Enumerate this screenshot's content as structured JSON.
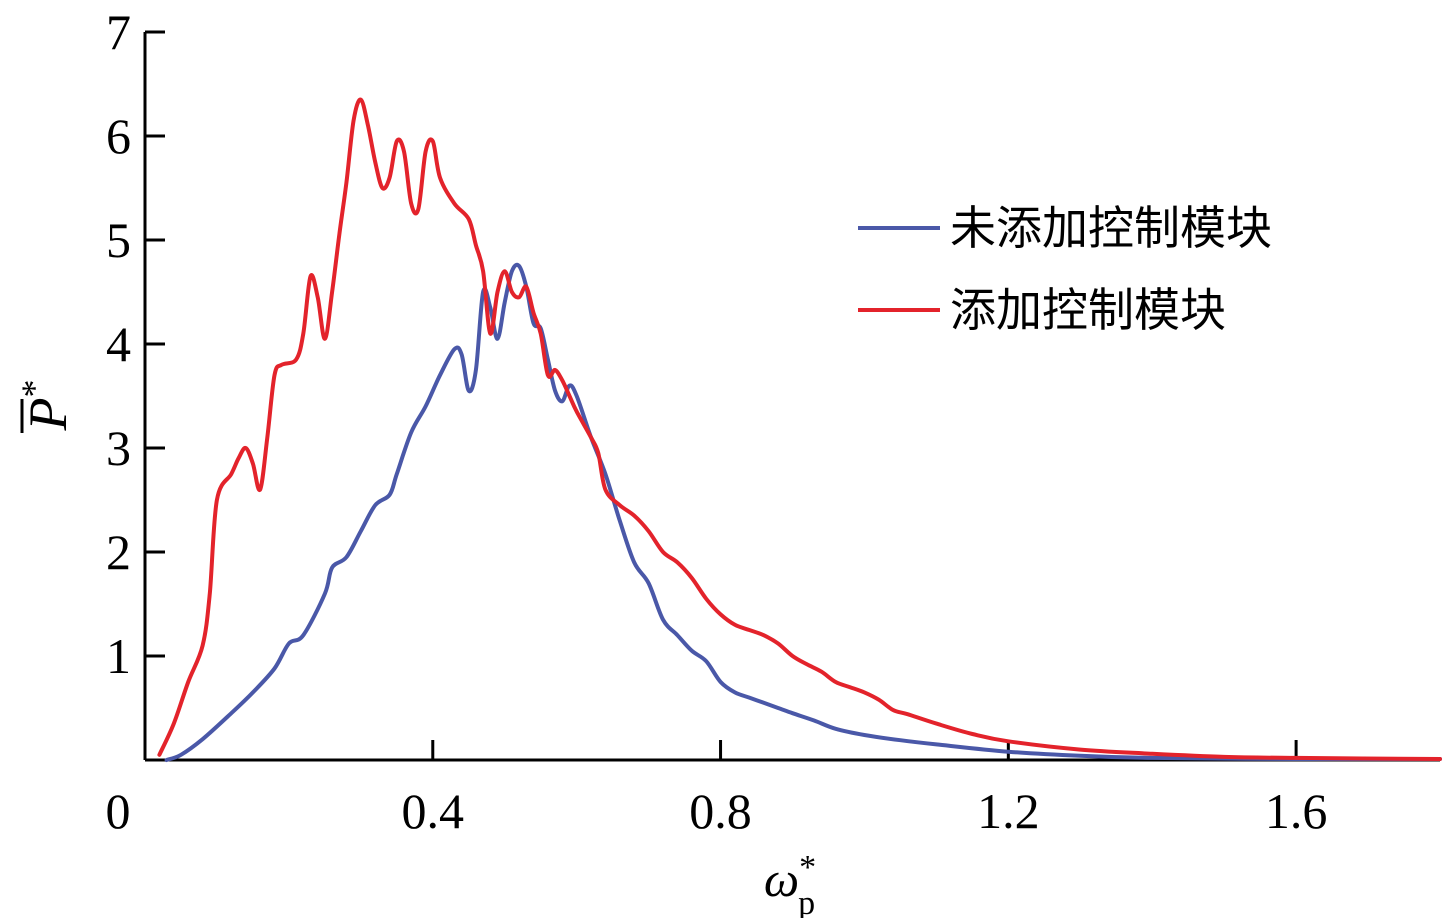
{
  "chart_data": {
    "type": "line",
    "xlabel": {
      "main": "ω",
      "sup": "*",
      "sub": "p"
    },
    "ylabel": {
      "main": "P",
      "sup": "*",
      "overbar": true
    },
    "xlim": [
      0,
      1.8
    ],
    "ylim": [
      0,
      7
    ],
    "x_ticks": [
      {
        "value": 0,
        "label": "0"
      },
      {
        "value": 0.4,
        "label": "0.4"
      },
      {
        "value": 0.8,
        "label": "0.8"
      },
      {
        "value": 1.2,
        "label": "1.2"
      },
      {
        "value": 1.6,
        "label": "1.6"
      }
    ],
    "y_ticks": [
      {
        "value": 1,
        "label": "1"
      },
      {
        "value": 2,
        "label": "2"
      },
      {
        "value": 3,
        "label": "3"
      },
      {
        "value": 4,
        "label": "4"
      },
      {
        "value": 5,
        "label": "5"
      },
      {
        "value": 6,
        "label": "6"
      },
      {
        "value": 7,
        "label": "7"
      }
    ],
    "grid": false,
    "legend_position": "right",
    "series": [
      {
        "name": "未添加控制模块",
        "color": "#4a58a8",
        "points": [
          [
            0.03,
            0.0
          ],
          [
            0.05,
            0.05
          ],
          [
            0.08,
            0.2
          ],
          [
            0.12,
            0.45
          ],
          [
            0.15,
            0.65
          ],
          [
            0.18,
            0.88
          ],
          [
            0.2,
            1.12
          ],
          [
            0.22,
            1.2
          ],
          [
            0.25,
            1.6
          ],
          [
            0.26,
            1.85
          ],
          [
            0.28,
            1.95
          ],
          [
            0.3,
            2.2
          ],
          [
            0.32,
            2.45
          ],
          [
            0.34,
            2.55
          ],
          [
            0.35,
            2.75
          ],
          [
            0.37,
            3.15
          ],
          [
            0.39,
            3.4
          ],
          [
            0.41,
            3.7
          ],
          [
            0.43,
            3.95
          ],
          [
            0.44,
            3.9
          ],
          [
            0.45,
            3.55
          ],
          [
            0.46,
            3.75
          ],
          [
            0.47,
            4.5
          ],
          [
            0.48,
            4.35
          ],
          [
            0.49,
            4.05
          ],
          [
            0.5,
            4.4
          ],
          [
            0.51,
            4.7
          ],
          [
            0.52,
            4.75
          ],
          [
            0.53,
            4.55
          ],
          [
            0.54,
            4.2
          ],
          [
            0.55,
            4.15
          ],
          [
            0.56,
            3.85
          ],
          [
            0.57,
            3.55
          ],
          [
            0.58,
            3.45
          ],
          [
            0.59,
            3.6
          ],
          [
            0.6,
            3.5
          ],
          [
            0.62,
            3.1
          ],
          [
            0.64,
            2.75
          ],
          [
            0.66,
            2.3
          ],
          [
            0.68,
            1.9
          ],
          [
            0.7,
            1.7
          ],
          [
            0.72,
            1.35
          ],
          [
            0.74,
            1.2
          ],
          [
            0.76,
            1.05
          ],
          [
            0.78,
            0.95
          ],
          [
            0.8,
            0.75
          ],
          [
            0.82,
            0.65
          ],
          [
            0.84,
            0.6
          ],
          [
            0.86,
            0.55
          ],
          [
            0.88,
            0.5
          ],
          [
            0.9,
            0.45
          ],
          [
            0.93,
            0.38
          ],
          [
            0.96,
            0.3
          ],
          [
            1.0,
            0.24
          ],
          [
            1.05,
            0.19
          ],
          [
            1.1,
            0.15
          ],
          [
            1.2,
            0.08
          ],
          [
            1.3,
            0.04
          ],
          [
            1.4,
            0.02
          ],
          [
            1.6,
            0.01
          ],
          [
            1.8,
            0.01
          ]
        ]
      },
      {
        "name": "添加控制模块",
        "color": "#e3232b",
        "points": [
          [
            0.02,
            0.05
          ],
          [
            0.04,
            0.35
          ],
          [
            0.06,
            0.75
          ],
          [
            0.08,
            1.1
          ],
          [
            0.09,
            1.6
          ],
          [
            0.1,
            2.5
          ],
          [
            0.12,
            2.75
          ],
          [
            0.13,
            2.9
          ],
          [
            0.14,
            3.0
          ],
          [
            0.15,
            2.85
          ],
          [
            0.16,
            2.6
          ],
          [
            0.17,
            3.1
          ],
          [
            0.18,
            3.7
          ],
          [
            0.19,
            3.8
          ],
          [
            0.21,
            3.85
          ],
          [
            0.22,
            4.1
          ],
          [
            0.23,
            4.65
          ],
          [
            0.24,
            4.45
          ],
          [
            0.25,
            4.05
          ],
          [
            0.26,
            4.5
          ],
          [
            0.27,
            5.05
          ],
          [
            0.28,
            5.55
          ],
          [
            0.29,
            6.15
          ],
          [
            0.3,
            6.35
          ],
          [
            0.31,
            6.1
          ],
          [
            0.32,
            5.75
          ],
          [
            0.33,
            5.5
          ],
          [
            0.34,
            5.6
          ],
          [
            0.35,
            5.95
          ],
          [
            0.36,
            5.85
          ],
          [
            0.37,
            5.35
          ],
          [
            0.38,
            5.3
          ],
          [
            0.39,
            5.85
          ],
          [
            0.4,
            5.95
          ],
          [
            0.41,
            5.6
          ],
          [
            0.43,
            5.35
          ],
          [
            0.45,
            5.2
          ],
          [
            0.46,
            4.95
          ],
          [
            0.47,
            4.7
          ],
          [
            0.48,
            4.1
          ],
          [
            0.49,
            4.5
          ],
          [
            0.5,
            4.7
          ],
          [
            0.51,
            4.5
          ],
          [
            0.52,
            4.45
          ],
          [
            0.53,
            4.55
          ],
          [
            0.54,
            4.3
          ],
          [
            0.55,
            4.1
          ],
          [
            0.56,
            3.7
          ],
          [
            0.57,
            3.75
          ],
          [
            0.58,
            3.65
          ],
          [
            0.59,
            3.5
          ],
          [
            0.6,
            3.35
          ],
          [
            0.62,
            3.1
          ],
          [
            0.63,
            2.95
          ],
          [
            0.64,
            2.6
          ],
          [
            0.66,
            2.45
          ],
          [
            0.68,
            2.35
          ],
          [
            0.7,
            2.2
          ],
          [
            0.72,
            2.0
          ],
          [
            0.74,
            1.9
          ],
          [
            0.76,
            1.75
          ],
          [
            0.78,
            1.55
          ],
          [
            0.8,
            1.4
          ],
          [
            0.82,
            1.3
          ],
          [
            0.84,
            1.25
          ],
          [
            0.86,
            1.2
          ],
          [
            0.88,
            1.12
          ],
          [
            0.9,
            1.0
          ],
          [
            0.92,
            0.92
          ],
          [
            0.94,
            0.85
          ],
          [
            0.96,
            0.75
          ],
          [
            0.98,
            0.7
          ],
          [
            1.0,
            0.65
          ],
          [
            1.02,
            0.58
          ],
          [
            1.04,
            0.48
          ],
          [
            1.06,
            0.44
          ],
          [
            1.1,
            0.35
          ],
          [
            1.15,
            0.25
          ],
          [
            1.2,
            0.18
          ],
          [
            1.3,
            0.1
          ],
          [
            1.4,
            0.06
          ],
          [
            1.5,
            0.03
          ],
          [
            1.6,
            0.02
          ],
          [
            1.8,
            0.01
          ]
        ]
      }
    ]
  }
}
